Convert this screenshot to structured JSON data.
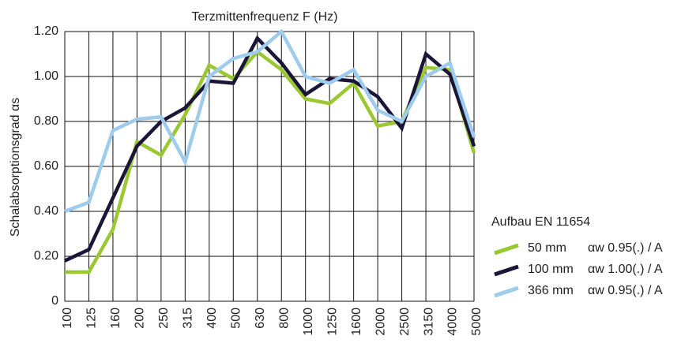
{
  "chart_data": {
    "type": "line",
    "title": "Terzmittenfrequenz F (Hz)",
    "y_label": "Schalabsorptionsgrad αs",
    "categories": [
      "100",
      "125",
      "160",
      "200",
      "250",
      "315",
      "400",
      "500",
      "630",
      "800",
      "1000",
      "1250",
      "1600",
      "2000",
      "2500",
      "3150",
      "4000",
      "5000"
    ],
    "series": [
      {
        "name": "50 mm",
        "rating": "αw 0.95(.) / A",
        "color": "#9ac832",
        "values": [
          0.13,
          0.13,
          0.32,
          0.71,
          0.65,
          0.83,
          1.05,
          0.99,
          1.11,
          1.03,
          0.9,
          0.88,
          0.97,
          0.78,
          0.8,
          1.04,
          1.03,
          0.66
        ]
      },
      {
        "name": "100 mm",
        "rating": "αw 1.00(.) / A",
        "color": "#1b1537",
        "values": [
          0.18,
          0.23,
          0.46,
          0.69,
          0.8,
          0.86,
          0.98,
          0.97,
          1.17,
          1.06,
          0.92,
          0.99,
          0.98,
          0.91,
          0.77,
          1.1,
          1.01,
          0.69
        ]
      },
      {
        "name": "366 mm",
        "rating": "αw 0.95(.) / A",
        "color": "#9fcbec",
        "values": [
          0.4,
          0.44,
          0.76,
          0.81,
          0.82,
          0.62,
          1.0,
          1.08,
          1.11,
          1.2,
          1.0,
          0.97,
          1.03,
          0.85,
          0.8,
          1.0,
          1.06,
          0.73
        ]
      }
    ],
    "legend_title": "Aufbau EN 11654",
    "ylim": [
      0,
      1.2
    ],
    "yticks": [
      0,
      {
        "value": 0.2,
        "label": "0.20"
      },
      {
        "value": 0.4,
        "label": "0.40"
      },
      {
        "value": 0.6,
        "label": "0.60"
      },
      {
        "value": 0.8,
        "label": "0.80"
      },
      {
        "value": 1.0,
        "label": "1.00"
      },
      {
        "value": 1.2,
        "label": "1.20"
      }
    ],
    "grid": true,
    "legend": "right"
  }
}
